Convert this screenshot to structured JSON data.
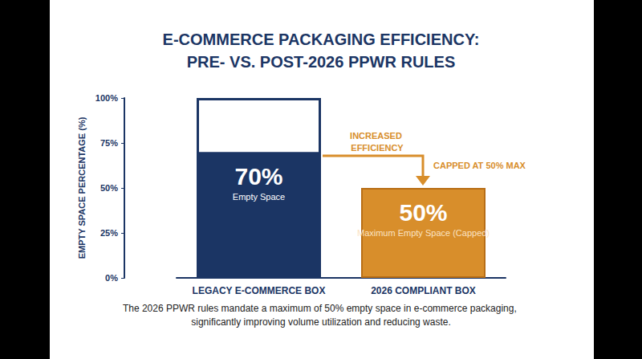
{
  "chart_data": {
    "type": "bar",
    "title": "E-COMMERCE PACKAGING EFFICIENCY:\nPRE- VS. POST-2026 PPWR RULES",
    "ylabel": "EMPTY SPACE PERCENTAGE (%)",
    "categories": [
      "LEGACY E-COMMERCE BOX",
      "2026 COMPLIANT BOX"
    ],
    "values": [
      70,
      50
    ],
    "value_labels": [
      "70%",
      "50%"
    ],
    "label_notes": [
      "Empty Space",
      "Maximum Empty Space (Capped)"
    ],
    "capacity": [
      100,
      null
    ],
    "colors": [
      "#1b3564",
      "#d88e2b"
    ],
    "ylim": [
      0,
      100
    ],
    "yticks": [
      {
        "value": 0,
        "label": "0%"
      },
      {
        "value": 25,
        "label": "25%"
      },
      {
        "value": 50,
        "label": "50%"
      },
      {
        "value": 75,
        "label": "75%"
      },
      {
        "value": 100,
        "label": "100%"
      }
    ],
    "grid": false,
    "data_labels": true,
    "annotations": [
      "INCREASED EFFICIENCY",
      "CAPPED AT 50% MAX"
    ],
    "caption": "The 2026 PPWR rules mandate a maximum of 50% empty space in e-commerce packaging, significantly improving volume utilization and reducing waste."
  }
}
